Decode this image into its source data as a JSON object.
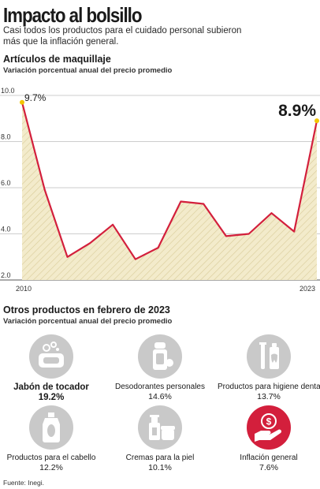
{
  "header": {
    "title": "Impacto al bolsillo",
    "lead_line1": "Casi todos los productos para el cuidado personal subieron",
    "lead_line2": "más que la inflación general."
  },
  "chart_data": {
    "type": "area",
    "title": "Artículos de maquillaje",
    "subtitle": "Variación porcentual anual del precio promedio",
    "x": [
      2010,
      2011,
      2012,
      2013,
      2014,
      2015,
      2016,
      2017,
      2018,
      2019,
      2020,
      2021,
      2022,
      2023
    ],
    "values": [
      9.7,
      5.9,
      3.0,
      3.6,
      4.4,
      2.9,
      3.4,
      5.4,
      5.3,
      3.9,
      4.0,
      4.9,
      4.1,
      8.9
    ],
    "ylim": [
      2.0,
      10.0
    ],
    "yticks": [
      "10.0",
      "8.0",
      "6.0",
      "4.0",
      "2.0"
    ],
    "yticks_num": [
      10,
      8,
      6,
      4,
      2
    ],
    "xtick_labels": [
      "2010",
      "2023"
    ],
    "first_label": "9.7%",
    "last_label": "8.9%",
    "grid": true,
    "line_color": "#d31f3c",
    "fill_color": "#efe6c2",
    "marker_color": "#f2c500"
  },
  "section2": {
    "title": "Otros productos en febrero de 2023",
    "subtitle": "Variación porcentual anual del precio promedio"
  },
  "products": [
    {
      "name": "Jabón de tocador",
      "value": "19.2%",
      "icon": "soap-icon"
    },
    {
      "name": "Desodorantes personales",
      "value": "14.6%",
      "icon": "deodorant-icon"
    },
    {
      "name": "Productos para higiene dental",
      "value": "13.7%",
      "icon": "toothbrush-icon"
    },
    {
      "name": "Productos para el cabello",
      "value": "12.2%",
      "icon": "shampoo-icon"
    },
    {
      "name": "Cremas para la piel",
      "value": "10.1%",
      "icon": "cream-icon"
    },
    {
      "name": "Inflación general",
      "value": "7.6%",
      "icon": "money-hand-icon"
    }
  ],
  "colors": {
    "highlight": "#d31f3c",
    "icon_bg": "#c9c9c9"
  },
  "source": "Fuente: Inegi."
}
